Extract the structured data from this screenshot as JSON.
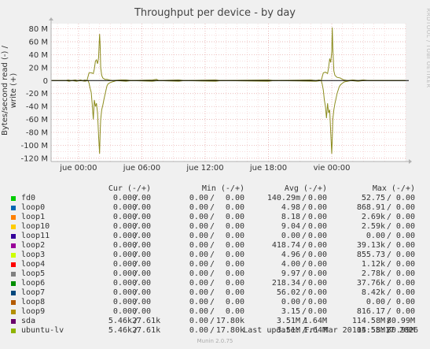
{
  "chart_data": {
    "type": "line",
    "title": "Throughput per device - by day",
    "ylabel": "Bytes/second read (-) / write (+)",
    "ylim": [
      -125,
      88
    ],
    "xlim": [
      -2.6,
      31
    ],
    "y_ticks": [
      80,
      60,
      40,
      20,
      0,
      -20,
      -40,
      -60,
      -80,
      -100,
      -120
    ],
    "y_tick_labels": [
      "80 M",
      "60 M",
      "40 M",
      "20 M",
      "0",
      "-20 M",
      "-40 M",
      "-60 M",
      "-80 M",
      "-100 M",
      "-120 M"
    ],
    "x_ticks": [
      0,
      6,
      12,
      18,
      24
    ],
    "x_tick_labels": [
      "jue 00:00",
      "jue 06:00",
      "jue 12:00",
      "jue 18:00",
      "vie 00:00"
    ],
    "series": [
      {
        "name": "ubuntu-lv",
        "color": "#8c8c1e",
        "write": [
          [
            -2.6,
            0
          ],
          [
            -1.2,
            0
          ],
          [
            -1.0,
            1
          ],
          [
            -0.7,
            0
          ],
          [
            -0.3,
            1
          ],
          [
            -0.1,
            0
          ],
          [
            0.2,
            1
          ],
          [
            0.4,
            0
          ],
          [
            0.6,
            1
          ],
          [
            0.8,
            0
          ],
          [
            1.0,
            12
          ],
          [
            1.2,
            12
          ],
          [
            1.4,
            11
          ],
          [
            1.5,
            18
          ],
          [
            1.6,
            30
          ],
          [
            1.7,
            32
          ],
          [
            1.8,
            26
          ],
          [
            1.9,
            35
          ],
          [
            2.0,
            72
          ],
          [
            2.05,
            55
          ],
          [
            2.1,
            20
          ],
          [
            2.2,
            8
          ],
          [
            2.3,
            4
          ],
          [
            2.5,
            2
          ],
          [
            2.7,
            2
          ],
          [
            2.9,
            1
          ],
          [
            3.2,
            0
          ],
          [
            4.0,
            1
          ],
          [
            4.5,
            1
          ],
          [
            5.0,
            0
          ],
          [
            7.0,
            1
          ],
          [
            7.4,
            2
          ],
          [
            7.6,
            0
          ],
          [
            9.5,
            1
          ],
          [
            10.0,
            0
          ],
          [
            13.0,
            1
          ],
          [
            13.4,
            0
          ],
          [
            18.0,
            1
          ],
          [
            18.5,
            0
          ],
          [
            22.0,
            1
          ],
          [
            22.5,
            0
          ],
          [
            22.8,
            1
          ],
          [
            23.0,
            0
          ],
          [
            23.2,
            12
          ],
          [
            23.4,
            13
          ],
          [
            23.6,
            11
          ],
          [
            23.7,
            20
          ],
          [
            23.8,
            34
          ],
          [
            23.9,
            28
          ],
          [
            24.0,
            45
          ],
          [
            24.05,
            82
          ],
          [
            24.1,
            50
          ],
          [
            24.2,
            15
          ],
          [
            24.3,
            8
          ],
          [
            24.5,
            5
          ],
          [
            24.8,
            4
          ],
          [
            25.0,
            2
          ],
          [
            25.2,
            1
          ],
          [
            25.5,
            0
          ],
          [
            26.0,
            1
          ],
          [
            26.5,
            0
          ],
          [
            27.0,
            1
          ],
          [
            27.5,
            0
          ],
          [
            31,
            0
          ]
        ],
        "read": [
          [
            -2.6,
            0
          ],
          [
            -1.2,
            0
          ],
          [
            -0.9,
            -1
          ],
          [
            -0.6,
            0
          ],
          [
            -0.2,
            -1
          ],
          [
            0.2,
            0
          ],
          [
            0.6,
            -1
          ],
          [
            0.9,
            0
          ],
          [
            1.0,
            -4
          ],
          [
            1.1,
            -12
          ],
          [
            1.2,
            -18
          ],
          [
            1.3,
            -36
          ],
          [
            1.4,
            -60
          ],
          [
            1.5,
            -30
          ],
          [
            1.6,
            -40
          ],
          [
            1.7,
            -35
          ],
          [
            1.8,
            -50
          ],
          [
            1.9,
            -85
          ],
          [
            2.0,
            -113
          ],
          [
            2.05,
            -80
          ],
          [
            2.1,
            -60
          ],
          [
            2.2,
            -45
          ],
          [
            2.3,
            -38
          ],
          [
            2.4,
            -30
          ],
          [
            2.5,
            -22
          ],
          [
            2.6,
            -15
          ],
          [
            2.7,
            -8
          ],
          [
            2.8,
            -5
          ],
          [
            3.0,
            -3
          ],
          [
            3.2,
            -2
          ],
          [
            3.4,
            -1
          ],
          [
            3.6,
            0
          ],
          [
            4.5,
            -1
          ],
          [
            5.0,
            0
          ],
          [
            7.0,
            -1
          ],
          [
            7.5,
            0
          ],
          [
            9.5,
            -1
          ],
          [
            10.0,
            0
          ],
          [
            13.0,
            -1
          ],
          [
            13.5,
            0
          ],
          [
            18.0,
            -1
          ],
          [
            18.5,
            0
          ],
          [
            22.5,
            -1
          ],
          [
            23.0,
            0
          ],
          [
            23.1,
            -6
          ],
          [
            23.2,
            -15
          ],
          [
            23.3,
            -30
          ],
          [
            23.4,
            -40
          ],
          [
            23.5,
            -58
          ],
          [
            23.6,
            -35
          ],
          [
            23.7,
            -50
          ],
          [
            23.8,
            -45
          ],
          [
            23.9,
            -80
          ],
          [
            24.0,
            -113
          ],
          [
            24.05,
            -90
          ],
          [
            24.1,
            -60
          ],
          [
            24.2,
            -45
          ],
          [
            24.3,
            -35
          ],
          [
            24.4,
            -28
          ],
          [
            24.5,
            -20
          ],
          [
            24.6,
            -15
          ],
          [
            24.7,
            -10
          ],
          [
            24.8,
            -7
          ],
          [
            25.0,
            -4
          ],
          [
            25.2,
            -2
          ],
          [
            25.5,
            -1
          ],
          [
            25.8,
            0
          ],
          [
            26.5,
            -1
          ],
          [
            27.0,
            0
          ],
          [
            31,
            0
          ]
        ]
      }
    ]
  },
  "watermark": "RRDTOOL / TOBI OETIKER",
  "legend": {
    "headers": {
      "cur": "Cur (-/+)",
      "min": "Min (-/+)",
      "avg": "Avg (-/+)",
      "max": "Max (-/+)"
    },
    "rows": [
      {
        "name": "fd0",
        "color": "#00cc00",
        "cur_r": "0.00",
        "cur_w": "0.00",
        "min_r": "0.00",
        "min_w": "0.00",
        "avg_r": "140.29m",
        "avg_w": "0.00",
        "max_r": "52.75",
        "max_w": "0.00"
      },
      {
        "name": "loop0",
        "color": "#0066b3",
        "cur_r": "0.00",
        "cur_w": "0.00",
        "min_r": "0.00",
        "min_w": "0.00",
        "avg_r": "4.98",
        "avg_w": "0.00",
        "max_r": "868.91",
        "max_w": "0.00"
      },
      {
        "name": "loop1",
        "color": "#ff8000",
        "cur_r": "0.00",
        "cur_w": "0.00",
        "min_r": "0.00",
        "min_w": "0.00",
        "avg_r": "8.18",
        "avg_w": "0.00",
        "max_r": "2.69k",
        "max_w": "0.00"
      },
      {
        "name": "loop10",
        "color": "#ffcc00",
        "cur_r": "0.00",
        "cur_w": "0.00",
        "min_r": "0.00",
        "min_w": "0.00",
        "avg_r": "9.04",
        "avg_w": "0.00",
        "max_r": "2.59k",
        "max_w": "0.00"
      },
      {
        "name": "loop11",
        "color": "#330099",
        "cur_r": "0.00",
        "cur_w": "0.00",
        "min_r": "0.00",
        "min_w": "0.00",
        "avg_r": "0.00",
        "avg_w": "0.00",
        "max_r": "0.00",
        "max_w": "0.00"
      },
      {
        "name": "loop2",
        "color": "#990099",
        "cur_r": "0.00",
        "cur_w": "0.00",
        "min_r": "0.00",
        "min_w": "0.00",
        "avg_r": "418.74",
        "avg_w": "0.00",
        "max_r": "39.13k",
        "max_w": "0.00"
      },
      {
        "name": "loop3",
        "color": "#ccff00",
        "cur_r": "0.00",
        "cur_w": "0.00",
        "min_r": "0.00",
        "min_w": "0.00",
        "avg_r": "4.96",
        "avg_w": "0.00",
        "max_r": "855.73",
        "max_w": "0.00"
      },
      {
        "name": "loop4",
        "color": "#ff0000",
        "cur_r": "0.00",
        "cur_w": "0.00",
        "min_r": "0.00",
        "min_w": "0.00",
        "avg_r": "4.00",
        "avg_w": "0.00",
        "max_r": "1.12k",
        "max_w": "0.00"
      },
      {
        "name": "loop5",
        "color": "#808080",
        "cur_r": "0.00",
        "cur_w": "0.00",
        "min_r": "0.00",
        "min_w": "0.00",
        "avg_r": "9.97",
        "avg_w": "0.00",
        "max_r": "2.78k",
        "max_w": "0.00"
      },
      {
        "name": "loop6",
        "color": "#008f00",
        "cur_r": "0.00",
        "cur_w": "0.00",
        "min_r": "0.00",
        "min_w": "0.00",
        "avg_r": "218.34",
        "avg_w": "0.00",
        "max_r": "37.76k",
        "max_w": "0.00"
      },
      {
        "name": "loop7",
        "color": "#00487d",
        "cur_r": "0.00",
        "cur_w": "0.00",
        "min_r": "0.00",
        "min_w": "0.00",
        "avg_r": "56.02",
        "avg_w": "0.00",
        "max_r": "8.42k",
        "max_w": "0.00"
      },
      {
        "name": "loop8",
        "color": "#b35a00",
        "cur_r": "0.00",
        "cur_w": "0.00",
        "min_r": "0.00",
        "min_w": "0.00",
        "avg_r": "0.00",
        "avg_w": "0.00",
        "max_r": "0.00",
        "max_w": "0.00"
      },
      {
        "name": "loop9",
        "color": "#b38f00",
        "cur_r": "0.00",
        "cur_w": "0.00",
        "min_r": "0.00",
        "min_w": "0.00",
        "avg_r": "3.15",
        "avg_w": "0.00",
        "max_r": "816.17",
        "max_w": "0.00"
      },
      {
        "name": "sda",
        "color": "#6b006b",
        "cur_r": "5.46k",
        "cur_w": "27.61k",
        "min_r": "0.00",
        "min_w": "17.80k",
        "avg_r": "3.51M",
        "avg_w": "1.64M",
        "max_r": "114.58M",
        "max_w": "80.99M"
      },
      {
        "name": "ubuntu-lv",
        "color": "#8fb300",
        "cur_r": "5.46k",
        "cur_w": "27.61k",
        "min_r": "0.00",
        "min_w": "17.80k",
        "avg_r": "3.51M",
        "avg_w": "1.64M",
        "max_r": "114.58M",
        "max_w": "80.99M"
      }
    ]
  },
  "last_update": "Last update: Fri Mar 20 05:55:17 2026",
  "footer": "Munin 2.0.75"
}
